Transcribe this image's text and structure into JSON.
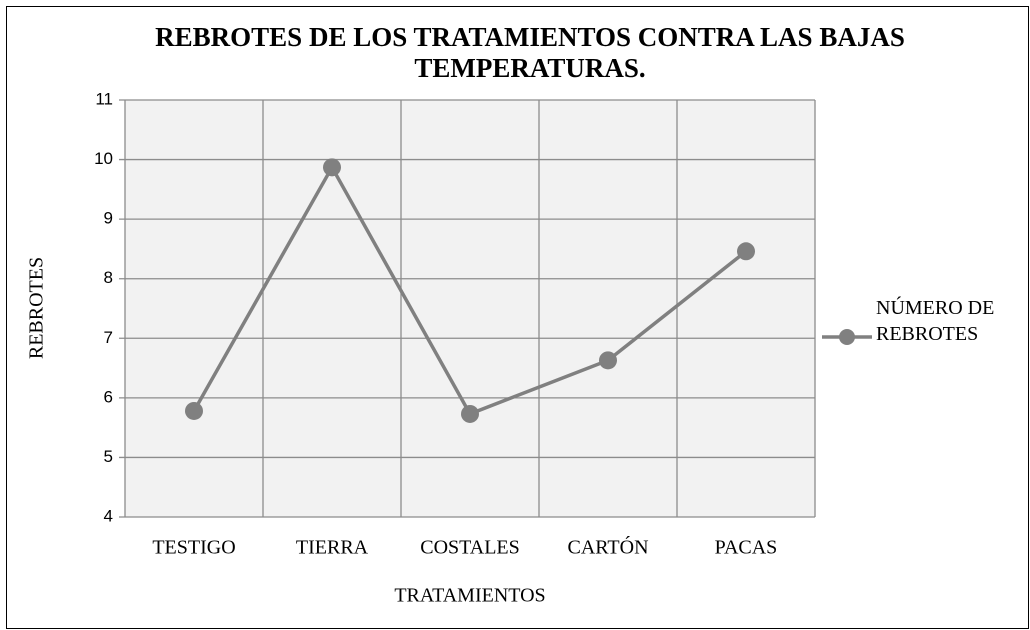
{
  "chart_data": {
    "type": "line",
    "title": "REBROTES DE LOS TRATAMIENTOS CONTRA LAS BAJAS TEMPERATURAS.",
    "x_label": "TRATAMIENTOS",
    "y_label": "REBROTES",
    "categories": [
      "TESTIGO",
      "TIERRA",
      "COSTALES",
      "CARTÓN",
      "PACAS"
    ],
    "series": [
      {
        "name": "NÚMERO DE REBROTES",
        "color": "#808080",
        "values": [
          5.78,
          9.87,
          5.73,
          6.63,
          8.46
        ]
      }
    ],
    "ylim": [
      4,
      11
    ],
    "yticks": [
      4,
      5,
      6,
      7,
      8,
      9,
      10,
      11
    ],
    "grid": true,
    "legend": "right"
  }
}
